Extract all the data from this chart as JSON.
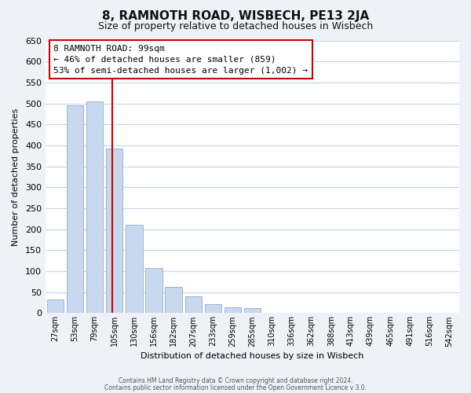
{
  "title": "8, RAMNOTH ROAD, WISBECH, PE13 2JA",
  "subtitle": "Size of property relative to detached houses in Wisbech",
  "xlabel": "Distribution of detached houses by size in Wisbech",
  "ylabel": "Number of detached properties",
  "bar_labels": [
    "27sqm",
    "53sqm",
    "79sqm",
    "105sqm",
    "130sqm",
    "156sqm",
    "182sqm",
    "207sqm",
    "233sqm",
    "259sqm",
    "285sqm",
    "310sqm",
    "336sqm",
    "362sqm",
    "388sqm",
    "413sqm",
    "439sqm",
    "465sqm",
    "491sqm",
    "516sqm",
    "542sqm"
  ],
  "bar_values": [
    33,
    495,
    505,
    393,
    210,
    107,
    62,
    40,
    22,
    13,
    12,
    1,
    0,
    0,
    0,
    0,
    0,
    0,
    0,
    0,
    1
  ],
  "bar_color": "#c8d8ee",
  "bar_edge_color": "#9ab4d4",
  "vline_color": "#cc0000",
  "ylim": [
    0,
    650
  ],
  "yticks": [
    0,
    50,
    100,
    150,
    200,
    250,
    300,
    350,
    400,
    450,
    500,
    550,
    600,
    650
  ],
  "annotation_title": "8 RAMNOTH ROAD: 99sqm",
  "annotation_line1": "← 46% of detached houses are smaller (859)",
  "annotation_line2": "53% of semi-detached houses are larger (1,002) →",
  "footer_line1": "Contains HM Land Registry data © Crown copyright and database right 2024.",
  "footer_line2": "Contains public sector information licensed under the Open Government Licence v 3.0.",
  "bg_color": "#eef2f8",
  "plot_bg_color": "#ffffff",
  "grid_color": "#c8d4e8",
  "title_fontsize": 11,
  "subtitle_fontsize": 9,
  "annotation_box_edge": "#cc0000"
}
